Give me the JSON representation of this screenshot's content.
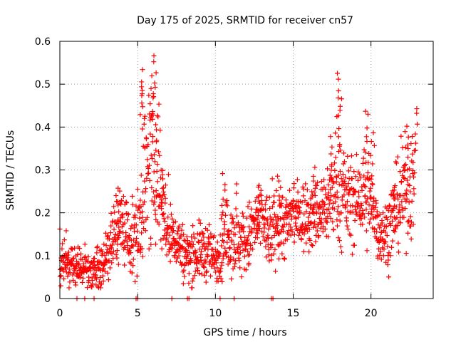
{
  "chart_data": {
    "type": "scatter",
    "title": "Day 175 of 2025, SRMTID for receiver cn57",
    "xlabel": "GPS time / hours",
    "ylabel": "SRMTID / TECUs",
    "xlim": [
      0,
      24
    ],
    "ylim": [
      0,
      0.6
    ],
    "grid": true,
    "legend": "none",
    "marker": "+",
    "color": "#ff0000",
    "xticks": [
      {
        "value": 0,
        "label": "0"
      },
      {
        "value": 5,
        "label": "5"
      },
      {
        "value": 10,
        "label": "10"
      },
      {
        "value": 15,
        "label": "15"
      },
      {
        "value": 20,
        "label": "20"
      }
    ],
    "yticks": [
      {
        "value": 0,
        "label": "0"
      },
      {
        "value": 0.1,
        "label": "0.1"
      },
      {
        "value": 0.2,
        "label": "0.2"
      },
      {
        "value": 0.3,
        "label": "0.3"
      },
      {
        "value": 0.4,
        "label": "0.4"
      },
      {
        "value": 0.5,
        "label": "0.5"
      },
      {
        "value": 0.6,
        "label": "0.6"
      }
    ],
    "envelope": {
      "x": [
        0.0,
        0.5,
        1.0,
        1.5,
        2.0,
        2.5,
        3.0,
        3.5,
        4.0,
        4.5,
        5.0,
        5.3,
        5.7,
        6.2,
        6.6,
        7.0,
        7.5,
        8.0,
        8.5,
        9.0,
        9.5,
        10.0,
        10.5,
        11.0,
        11.5,
        12.0,
        12.5,
        13.0,
        13.5,
        14.0,
        14.5,
        15.0,
        15.5,
        16.0,
        16.5,
        17.0,
        17.5,
        18.0,
        18.5,
        19.0,
        19.5,
        20.0,
        20.5,
        21.0,
        21.5,
        22.0,
        22.5,
        22.8
      ],
      "center": [
        0.08,
        0.08,
        0.07,
        0.07,
        0.065,
        0.07,
        0.1,
        0.15,
        0.18,
        0.13,
        0.15,
        0.25,
        0.28,
        0.3,
        0.22,
        0.14,
        0.14,
        0.1,
        0.1,
        0.11,
        0.11,
        0.09,
        0.12,
        0.16,
        0.13,
        0.13,
        0.17,
        0.19,
        0.14,
        0.18,
        0.17,
        0.19,
        0.19,
        0.19,
        0.2,
        0.21,
        0.24,
        0.25,
        0.23,
        0.22,
        0.24,
        0.22,
        0.16,
        0.15,
        0.2,
        0.23,
        0.26,
        0.27
      ],
      "spread": [
        0.03,
        0.03,
        0.025,
        0.025,
        0.025,
        0.03,
        0.04,
        0.05,
        0.05,
        0.05,
        0.06,
        0.1,
        0.1,
        0.1,
        0.07,
        0.05,
        0.04,
        0.04,
        0.04,
        0.04,
        0.04,
        0.035,
        0.05,
        0.06,
        0.05,
        0.05,
        0.05,
        0.05,
        0.05,
        0.05,
        0.05,
        0.05,
        0.05,
        0.05,
        0.05,
        0.06,
        0.06,
        0.07,
        0.06,
        0.06,
        0.07,
        0.06,
        0.05,
        0.05,
        0.06,
        0.06,
        0.07,
        0.08
      ]
    },
    "peaks": [
      {
        "x": 5.2,
        "y": 0.54
      },
      {
        "x": 5.35,
        "y": 0.5
      },
      {
        "x": 5.9,
        "y": 0.52
      },
      {
        "x": 6.1,
        "y": 0.575
      },
      {
        "x": 6.25,
        "y": 0.46
      },
      {
        "x": 6.6,
        "y": 0.31
      },
      {
        "x": 3.7,
        "y": 0.27
      },
      {
        "x": 10.5,
        "y": 0.3
      },
      {
        "x": 12.8,
        "y": 0.26
      },
      {
        "x": 14.1,
        "y": 0.3
      },
      {
        "x": 16.3,
        "y": 0.31
      },
      {
        "x": 17.4,
        "y": 0.38
      },
      {
        "x": 17.9,
        "y": 0.535
      },
      {
        "x": 18.0,
        "y": 0.47
      },
      {
        "x": 19.7,
        "y": 0.45
      },
      {
        "x": 20.1,
        "y": 0.4
      },
      {
        "x": 21.5,
        "y": 0.27
      },
      {
        "x": 22.3,
        "y": 0.41
      },
      {
        "x": 22.9,
        "y": 0.455
      }
    ],
    "zero_points_x": [
      1.1,
      1.6,
      2.2,
      4.9,
      5.0,
      7.2,
      8.2,
      8.3,
      10.3,
      11.2,
      13.6,
      13.7
    ]
  }
}
